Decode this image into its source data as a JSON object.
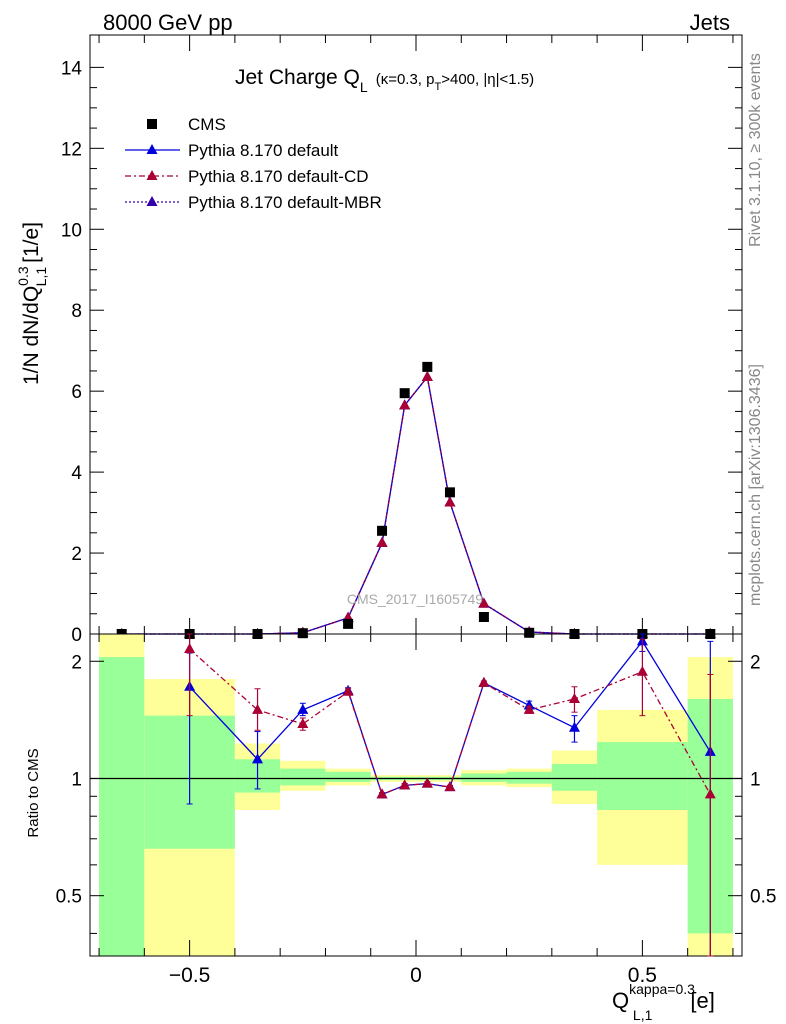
{
  "header": {
    "left": "8000 GeV pp",
    "right": "Jets"
  },
  "side": {
    "rivet": "Rivet 3.1.10, ≥ 300k events",
    "mcplots": "mcplots.cern.ch [arXiv:1306.3436]"
  },
  "title": {
    "main": "Jet Charge Q",
    "sub": "L",
    "params": "(κ=0.3, p",
    "pt_sub": "T",
    "params2": ">400, |η|<1.5)"
  },
  "watermark": "CMS_2017_I1605749",
  "ylabel_main": "1/N dN/dQ",
  "ylabel_sup": "0.3",
  "ylabel_sub": "L,1",
  "ylabel_unit": "[1/e]",
  "ratio_ylabel": "Ratio to CMS",
  "xlabel": {
    "main": "Q",
    "sup": "kappa=0.3",
    "sub": "L,1",
    "unit": "[e]"
  },
  "legend": [
    {
      "label": "CMS",
      "color": "#000000",
      "style": "marker-square"
    },
    {
      "label": "Pythia 8.170 default",
      "color": "#0000dd",
      "style": "solid"
    },
    {
      "label": "Pythia 8.170 default-CD",
      "color": "#aa0033",
      "style": "dashdot"
    },
    {
      "label": "Pythia 8.170 default-MBR",
      "color": "#3300aa",
      "style": "dotted"
    }
  ],
  "chart_data": [
    {
      "type": "scatter",
      "panel": "main",
      "xlim": [
        -0.72,
        0.72
      ],
      "ylim": [
        0,
        14.8
      ],
      "yticks": [
        0,
        2,
        4,
        6,
        8,
        10,
        12,
        14
      ],
      "x": [
        -0.65,
        -0.5,
        -0.35,
        -0.25,
        -0.15,
        -0.075,
        -0.025,
        0.025,
        0.075,
        0.15,
        0.25,
        0.35,
        0.5,
        0.65
      ],
      "series": [
        {
          "name": "CMS",
          "values": [
            0.0,
            0.0,
            0.0,
            0.02,
            0.25,
            2.55,
            5.95,
            6.6,
            3.5,
            0.42,
            0.03,
            0.0,
            0.0,
            0.0
          ]
        },
        {
          "name": "Pythia 8.170 default",
          "values": [
            0.0,
            0.0,
            0.0,
            0.03,
            0.4,
            2.25,
            5.65,
            6.35,
            3.25,
            0.75,
            0.05,
            0.0,
            0.0,
            0.0
          ]
        },
        {
          "name": "Pythia 8.170 default-CD",
          "values": [
            0.0,
            0.0,
            0.0,
            0.03,
            0.4,
            2.25,
            5.65,
            6.35,
            3.25,
            0.75,
            0.05,
            0.0,
            0.0,
            0.0
          ]
        },
        {
          "name": "Pythia 8.170 default-MBR",
          "values": [
            0.0,
            0.0,
            0.0,
            0.03,
            0.4,
            2.25,
            5.65,
            6.35,
            3.25,
            0.75,
            0.05,
            0.0,
            0.0,
            0.0
          ]
        }
      ]
    },
    {
      "type": "line",
      "panel": "ratio",
      "xlim": [
        -0.72,
        0.72
      ],
      "ylim": [
        0.35,
        2.35
      ],
      "log_y": true,
      "yticks": [
        0.5,
        1,
        2
      ],
      "xticks": [
        -0.5,
        0,
        0.5
      ],
      "xtick_labels": [
        "−0.5",
        "0",
        "0.5"
      ],
      "bands": [
        {
          "x0": -0.7,
          "x1": -0.6,
          "green": [
            0.35,
            2.05
          ],
          "yellow": [
            0.35,
            2.35
          ]
        },
        {
          "x0": -0.6,
          "x1": -0.4,
          "green": [
            0.66,
            1.45
          ],
          "yellow": [
            0.35,
            1.8
          ]
        },
        {
          "x0": -0.4,
          "x1": -0.3,
          "green": [
            0.92,
            1.12
          ],
          "yellow": [
            0.83,
            1.23
          ]
        },
        {
          "x0": -0.3,
          "x1": -0.2,
          "green": [
            0.96,
            1.06
          ],
          "yellow": [
            0.93,
            1.11
          ]
        },
        {
          "x0": -0.2,
          "x1": -0.1,
          "green": [
            0.98,
            1.04
          ],
          "yellow": [
            0.96,
            1.06
          ]
        },
        {
          "x0": -0.1,
          "x1": 0.1,
          "green": [
            0.99,
            1.01
          ],
          "yellow": [
            0.98,
            1.02
          ]
        },
        {
          "x0": 0.1,
          "x1": 0.2,
          "green": [
            0.98,
            1.03
          ],
          "yellow": [
            0.96,
            1.05
          ]
        },
        {
          "x0": 0.2,
          "x1": 0.3,
          "green": [
            0.97,
            1.04
          ],
          "yellow": [
            0.95,
            1.06
          ]
        },
        {
          "x0": 0.3,
          "x1": 0.4,
          "green": [
            0.93,
            1.09
          ],
          "yellow": [
            0.86,
            1.18
          ]
        },
        {
          "x0": 0.4,
          "x1": 0.6,
          "green": [
            0.83,
            1.24
          ],
          "yellow": [
            0.6,
            1.5
          ]
        },
        {
          "x0": 0.6,
          "x1": 0.7,
          "green": [
            0.4,
            1.6
          ],
          "yellow": [
            0.35,
            2.05
          ]
        }
      ],
      "x": [
        -0.5,
        -0.35,
        -0.25,
        -0.15,
        -0.075,
        -0.025,
        0.025,
        0.075,
        0.15,
        0.25,
        0.35,
        0.5,
        0.65
      ],
      "series": [
        {
          "name": "Pythia 8.170 default",
          "values": [
            1.72,
            1.12,
            1.5,
            1.68,
            0.91,
            0.96,
            0.97,
            0.95,
            1.76,
            1.54,
            1.35,
            2.25,
            1.17
          ],
          "err_lo": [
            0.86,
            0.94,
            1.45,
            1.65,
            0.9,
            0.95,
            0.96,
            0.94,
            1.74,
            1.5,
            1.24,
            2.12,
            0.3
          ],
          "err_hi": [
            2.1,
            1.32,
            1.56,
            1.71,
            0.92,
            0.97,
            0.98,
            0.96,
            1.78,
            1.58,
            1.45,
            2.38,
            2.25
          ]
        },
        {
          "name": "Pythia 8.170 default-CD",
          "values": [
            2.15,
            1.5,
            1.38,
            1.67,
            0.91,
            0.96,
            0.97,
            0.95,
            1.76,
            1.5,
            1.6,
            1.88,
            0.91
          ],
          "err_lo": [
            1.45,
            1.33,
            1.33,
            1.65,
            0.9,
            0.95,
            0.96,
            0.94,
            1.74,
            1.47,
            1.48,
            1.45,
            0.3
          ],
          "err_hi": [
            2.35,
            1.7,
            1.43,
            1.7,
            0.92,
            0.97,
            0.98,
            0.96,
            1.78,
            1.53,
            1.72,
            2.28,
            1.85
          ]
        }
      ]
    }
  ]
}
